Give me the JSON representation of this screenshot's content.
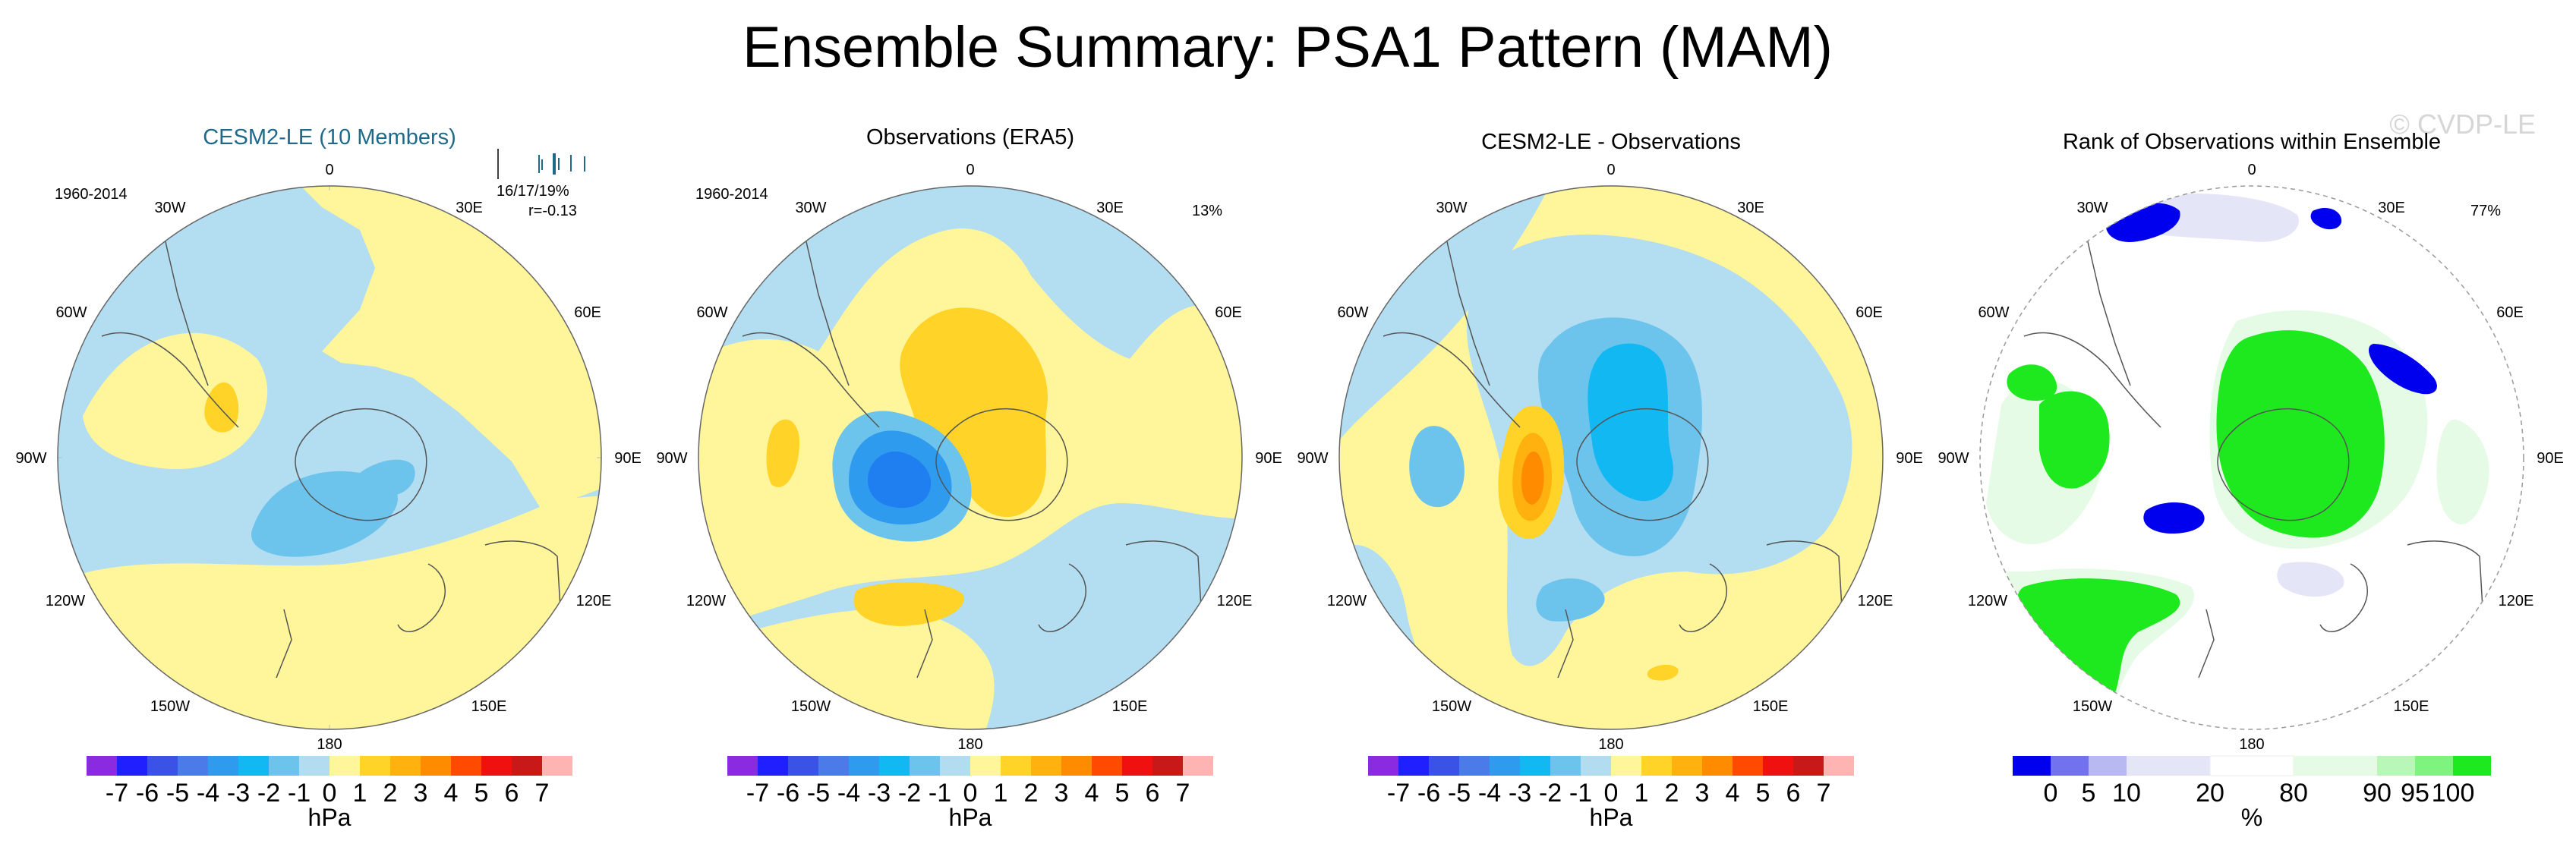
{
  "figure": {
    "title": "Ensemble Summary: PSA1 Pattern (MAM)",
    "watermark": "© CVDP-LE"
  },
  "colors": {
    "title_blue": "#1f6a8a",
    "coast": "#555555",
    "grid_line": "#9a9a9a",
    "hpa_scale": [
      "#8a2be2",
      "#1f1fff",
      "#3a52e6",
      "#4a7be8",
      "#2f9bef",
      "#12b8f2",
      "#6cc4ec",
      "#b2dcf0",
      "#fff59a",
      "#ffd327",
      "#ffb20f",
      "#ff8c00",
      "#ff4a00",
      "#f01010",
      "#c81818",
      "#ffb4b4"
    ],
    "rank_scale": [
      "#0000ee",
      "#7272ee",
      "#b9b9f2",
      "#e4e6f8",
      "#ffffff",
      "#e6fbe6",
      "#b9f7b9",
      "#7ef47e",
      "#1ee91e"
    ]
  },
  "panels": [
    {
      "title": "CESM2-LE (10 Members)",
      "title_color": "#1f6a8a",
      "period": "1960-2014",
      "stats_top": "16/17/19%",
      "stats_bottom": "r=-0.13",
      "legend_kind": "hpa",
      "units": "hPa"
    },
    {
      "title": "Observations (ERA5)",
      "title_color": "#000000",
      "period": "1960-2014",
      "stats_top": "13%",
      "stats_bottom": "",
      "legend_kind": "hpa",
      "units": "hPa"
    },
    {
      "title": "CESM2-LE - Observations",
      "title_color": "#000000",
      "period": "",
      "stats_top": "",
      "stats_bottom": "",
      "legend_kind": "hpa",
      "units": "hPa"
    },
    {
      "title": "Rank of Observations within Ensemble",
      "title_color": "#000000",
      "period": "",
      "stats_top": "77%",
      "stats_bottom": "",
      "legend_kind": "rank",
      "units": "%"
    }
  ],
  "longitude_labels": [
    "0",
    "30E",
    "60E",
    "90E",
    "120E",
    "150E",
    "180",
    "150W",
    "120W",
    "90W",
    "60W",
    "30W"
  ],
  "chart_data": [
    {
      "type": "heatmap",
      "title": "CESM2-LE (10 Members)",
      "projection": "south polar stereographic",
      "colorbar": {
        "labels": [
          "-7",
          "-6",
          "-5",
          "-4",
          "-3",
          "-2",
          "-1",
          "0",
          "1",
          "2",
          "3",
          "4",
          "5",
          "6",
          "7"
        ],
        "units": "hPa"
      },
      "ensemble_spread_ticks": [
        16,
        17,
        19
      ],
      "pattern_correlation": -0.13
    },
    {
      "type": "heatmap",
      "title": "Observations (ERA5)",
      "projection": "south polar stereographic",
      "colorbar": {
        "labels": [
          "-7",
          "-6",
          "-5",
          "-4",
          "-3",
          "-2",
          "-1",
          "0",
          "1",
          "2",
          "3",
          "4",
          "5",
          "6",
          "7"
        ],
        "units": "hPa"
      },
      "percent_variance": 13
    },
    {
      "type": "heatmap",
      "title": "CESM2-LE - Observations",
      "projection": "south polar stereographic",
      "colorbar": {
        "labels": [
          "-7",
          "-6",
          "-5",
          "-4",
          "-3",
          "-2",
          "-1",
          "0",
          "1",
          "2",
          "3",
          "4",
          "5",
          "6",
          "7"
        ],
        "units": "hPa"
      }
    },
    {
      "type": "heatmap",
      "title": "Rank of Observations within Ensemble",
      "projection": "south polar stereographic",
      "colorbar": {
        "labels": [
          "0",
          "5",
          "10",
          "20",
          "80",
          "90",
          "95",
          "100"
        ],
        "units": "%"
      },
      "percent_within_range": 77
    }
  ]
}
